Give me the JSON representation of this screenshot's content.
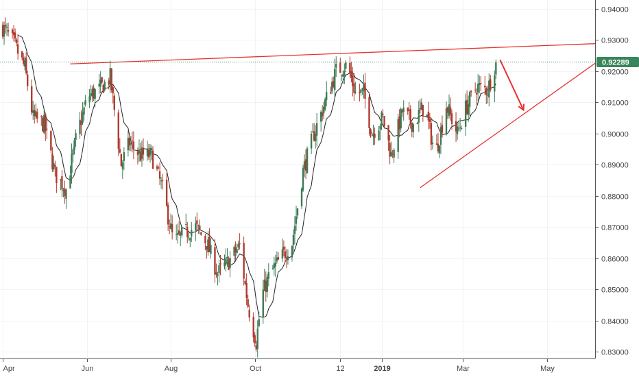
{
  "chart_data": {
    "type": "candlestick",
    "x_tick_labels": [
      "Apr",
      "Jun",
      "Aug",
      "Oct",
      "12",
      "2019",
      "Mar",
      "May"
    ],
    "x_tick_bold": [
      false,
      false,
      false,
      false,
      false,
      true,
      false,
      false
    ],
    "x_ticks_days": [
      0,
      61,
      122,
      183,
      245,
      275,
      334,
      395
    ],
    "y_ticks": [
      "0.94000",
      "0.93000",
      "0.92000",
      "0.91000",
      "0.90000",
      "0.89000",
      "0.88000",
      "0.87000",
      "0.86000",
      "0.85000",
      "0.84000",
      "0.83000"
    ],
    "ylim": [
      0.8278,
      0.9428
    ],
    "xlim_days": [
      -2,
      430
    ],
    "grid": true,
    "last_price": "0.92289",
    "last_price_value": 0.92289,
    "colors": {
      "up": "#3d7a55",
      "down": "#b03a2e",
      "ma": "#222222",
      "trendline": "#e8322e",
      "price_label_bg": "#38865a",
      "grid": "#f0f3f8"
    },
    "close_path_days": [
      0,
      8,
      16,
      22,
      30,
      38,
      46,
      54,
      62,
      70,
      78,
      86,
      92,
      100,
      108,
      116,
      124,
      132,
      140,
      148,
      156,
      164,
      172,
      178,
      184,
      188,
      194,
      202,
      210,
      218,
      226,
      234,
      242,
      250,
      256,
      262,
      268,
      276,
      282,
      290,
      298,
      306,
      314,
      322,
      330,
      336,
      344,
      352,
      358
    ],
    "close_path_values": [
      0.934,
      0.929,
      0.921,
      0.905,
      0.903,
      0.887,
      0.882,
      0.9,
      0.912,
      0.914,
      0.918,
      0.89,
      0.897,
      0.893,
      0.893,
      0.882,
      0.865,
      0.868,
      0.87,
      0.865,
      0.855,
      0.859,
      0.864,
      0.845,
      0.833,
      0.848,
      0.855,
      0.86,
      0.865,
      0.888,
      0.9,
      0.91,
      0.92,
      0.922,
      0.913,
      0.913,
      0.9,
      0.905,
      0.893,
      0.907,
      0.903,
      0.909,
      0.893,
      0.909,
      0.9,
      0.908,
      0.915,
      0.914,
      0.923
    ],
    "ma_period": 10,
    "trendlines": [
      {
        "d1": 49,
        "v1": 0.9223,
        "d2": 430,
        "v2": 0.9288
      },
      {
        "d1": 303,
        "v1": 0.8826,
        "d2": 430,
        "v2": 0.9225
      }
    ],
    "arrow": {
      "d1": 361,
      "v1": 0.9236,
      "d2": 378,
      "v2": 0.9075
    },
    "price_line": true
  }
}
